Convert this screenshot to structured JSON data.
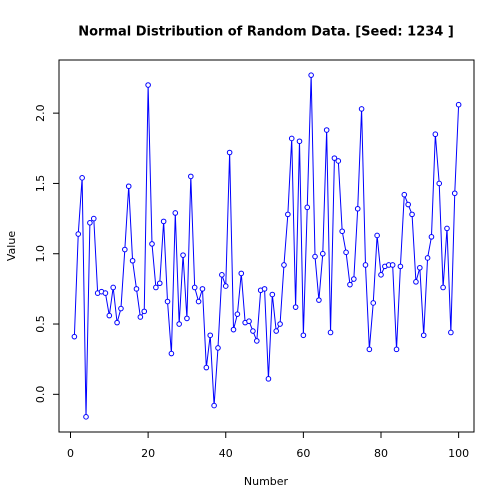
{
  "chart_data": {
    "type": "line",
    "title": "Normal Distribution of Random Data.  [Seed: 1234 ]",
    "x_label": "Number",
    "y_label": "Value",
    "color": "#0000ff",
    "x": [
      1,
      2,
      3,
      4,
      5,
      6,
      7,
      8,
      9,
      10,
      11,
      12,
      13,
      14,
      15,
      16,
      17,
      18,
      19,
      20,
      21,
      22,
      23,
      24,
      25,
      26,
      27,
      28,
      29,
      30,
      31,
      32,
      33,
      34,
      35,
      36,
      37,
      38,
      39,
      40,
      41,
      42,
      43,
      44,
      45,
      46,
      47,
      48,
      49,
      50,
      51,
      52,
      53,
      54,
      55,
      56,
      57,
      58,
      59,
      60,
      61,
      62,
      63,
      64,
      65,
      66,
      67,
      68,
      69,
      70,
      71,
      72,
      73,
      74,
      75,
      76,
      77,
      78,
      79,
      80,
      81,
      82,
      83,
      84,
      85,
      86,
      87,
      88,
      89,
      90,
      91,
      92,
      93,
      94,
      95,
      96,
      97,
      98,
      99,
      100
    ],
    "values": [
      0.41,
      1.14,
      1.54,
      -0.16,
      1.22,
      1.25,
      0.72,
      0.73,
      0.72,
      0.56,
      0.76,
      0.51,
      0.61,
      1.03,
      1.48,
      0.95,
      0.75,
      0.55,
      0.59,
      2.2,
      1.07,
      0.76,
      0.79,
      1.23,
      0.66,
      0.29,
      1.29,
      0.5,
      0.99,
      0.54,
      1.55,
      0.76,
      0.66,
      0.75,
      0.19,
      0.42,
      -0.08,
      0.33,
      0.85,
      0.77,
      1.72,
      0.46,
      0.57,
      0.86,
      0.51,
      0.52,
      0.45,
      0.38,
      0.74,
      0.75,
      0.11,
      0.71,
      0.45,
      0.5,
      0.92,
      1.28,
      1.82,
      0.62,
      1.8,
      0.42,
      1.33,
      2.27,
      0.98,
      0.67,
      1.0,
      1.88,
      0.44,
      1.68,
      1.66,
      1.16,
      1.01,
      0.78,
      0.82,
      1.32,
      2.03,
      0.92,
      0.32,
      0.65,
      1.13,
      0.85,
      0.91,
      0.92,
      0.92,
      0.32,
      0.91,
      1.42,
      1.35,
      1.28,
      0.8,
      0.9,
      0.42,
      0.97,
      1.12,
      1.85,
      1.5,
      0.76,
      1.18,
      0.44,
      1.43,
      2.06
    ],
    "xlim": [
      -2.96,
      103.96
    ],
    "ylim": [
      -0.268,
      2.378
    ],
    "xticks": [
      0,
      20,
      40,
      60,
      80,
      100
    ],
    "yticks": [
      {
        "value": 0,
        "label": "0.0"
      },
      0.5,
      {
        "value": 1,
        "label": "1.0"
      },
      1.5,
      {
        "value": 2,
        "label": "2.0"
      }
    ]
  }
}
